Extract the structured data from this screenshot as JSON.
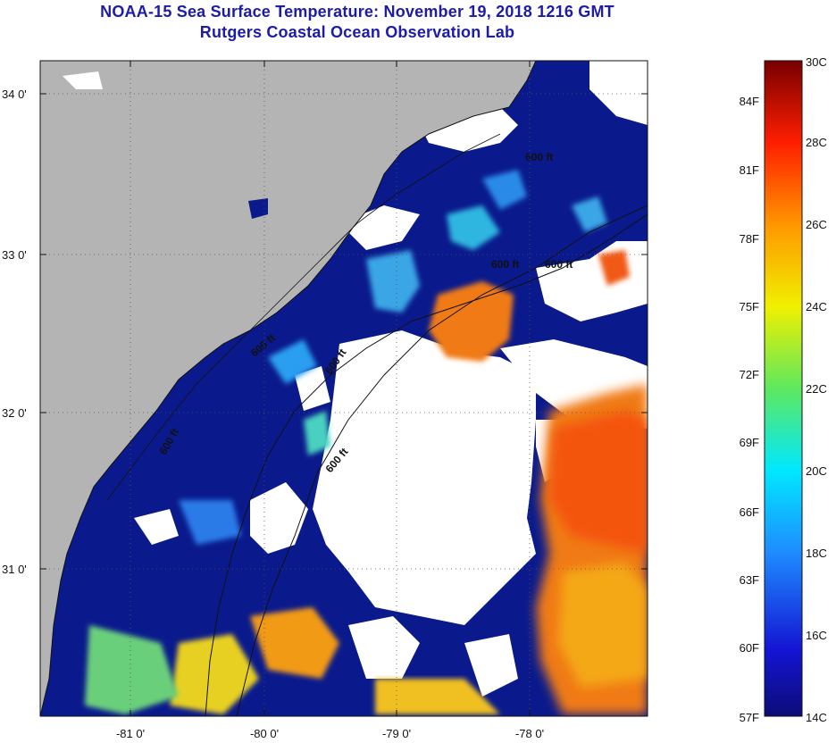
{
  "title": {
    "line1": "NOAA-15 Sea Surface Temperature:  November 19, 2018 1216 GMT",
    "line2": "Rutgers Coastal Ocean Observation Lab"
  },
  "map": {
    "lat_labels": [
      "34 0'",
      "33 0'",
      "32 0'",
      "31 0'"
    ],
    "lon_labels": [
      "-81 0'",
      "-80 0'",
      "-79 0'",
      "-78 0'"
    ],
    "contour_label": "600 ft",
    "colors": {
      "land": "#b4b4b4",
      "ocean_cold": "#0a1a8c",
      "cloud": "#ffffff"
    }
  },
  "colorbar": {
    "celsius_labels": [
      "30C",
      "28C",
      "26C",
      "24C",
      "22C",
      "20C",
      "18C",
      "16C",
      "14C"
    ],
    "fahrenheit_labels": [
      "84F",
      "81F",
      "78F",
      "75F",
      "72F",
      "69F",
      "66F",
      "63F",
      "60F",
      "57F"
    ],
    "range_c": [
      14,
      30
    ]
  }
}
